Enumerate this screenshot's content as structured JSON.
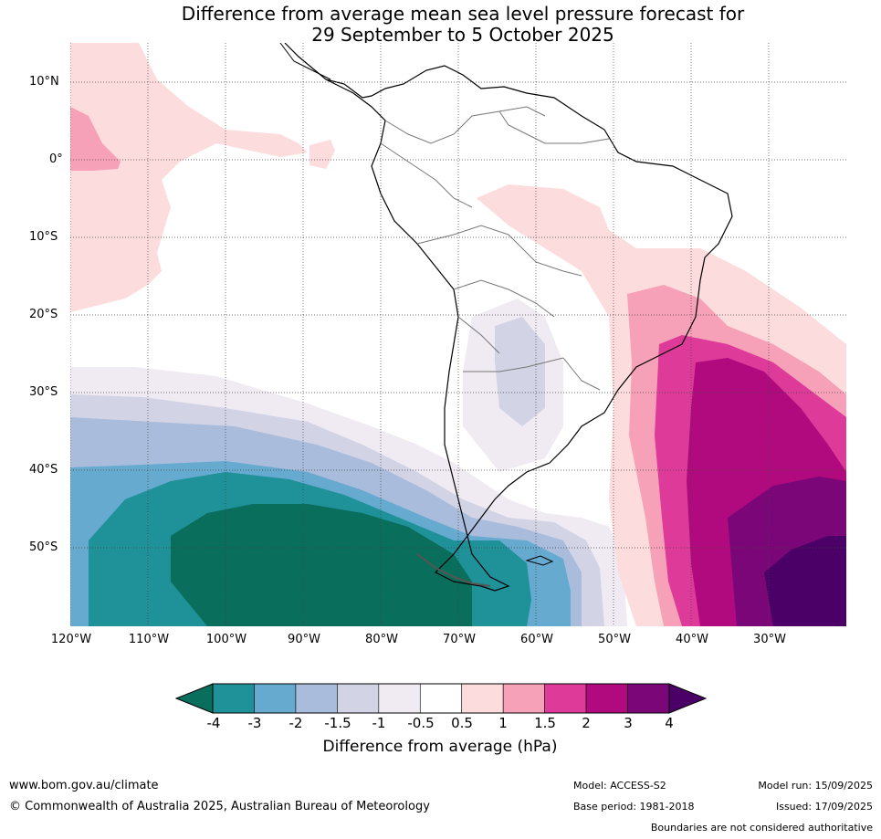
{
  "title_line1": "Difference from average mean sea level pressure forecast for",
  "title_line2": "29 September to 5 October 2025",
  "lat_labels": [
    "10°N",
    "0°",
    "10°S",
    "20°S",
    "30°S",
    "40°S",
    "50°S"
  ],
  "lon_labels": [
    "120°W",
    "110°W",
    "100°W",
    "90°W",
    "80°W",
    "70°W",
    "60°W",
    "50°W",
    "40°W",
    "30°W"
  ],
  "colorbar": {
    "label": "Difference from average (hPa)",
    "ticks": [
      "-4",
      "-3",
      "-2",
      "-1.5",
      "-1",
      "-0.5",
      "0.5",
      "1",
      "1.5",
      "2",
      "3",
      "4"
    ],
    "colors": [
      "#0a6e5c",
      "#1f9199",
      "#66aad0",
      "#a9bcdc",
      "#d2d4e6",
      "#f0ebf2",
      "#ffffff",
      "#fcdcdc",
      "#f7a1b8",
      "#de3a9a",
      "#b10a7e",
      "#7a0678",
      "#4a0066"
    ]
  },
  "footer": {
    "website": "www.bom.gov.au/climate",
    "copyright": "© Commonwealth of Australia 2025, Australian Bureau of Meteorology",
    "model": "Model: ACCESS-S2",
    "base_period": "Base period: 1981-2018",
    "model_run": "Model run: 15/09/2025",
    "issued": "Issued: 17/09/2025",
    "disclaimer": "Boundaries are not considered authoritative"
  }
}
